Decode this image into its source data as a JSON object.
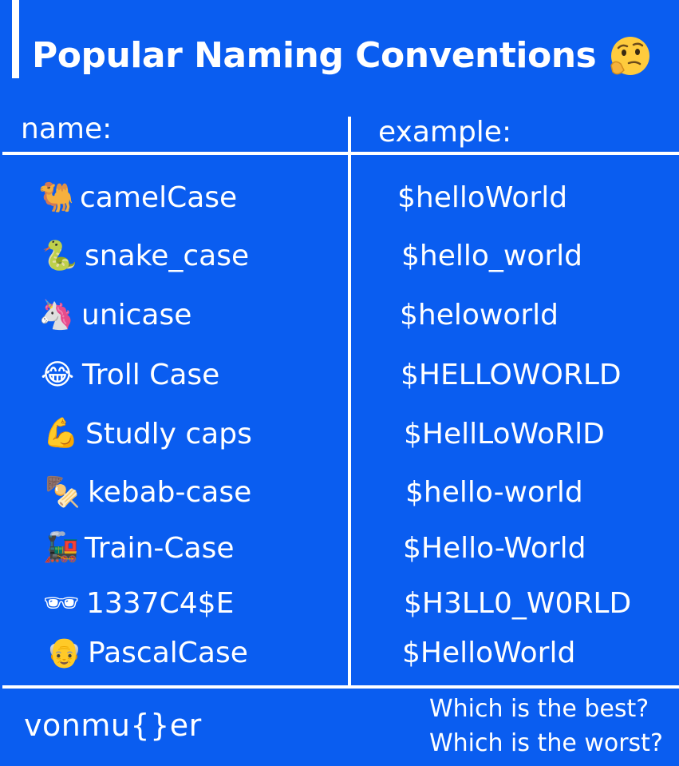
{
  "header": {
    "title": "Popular Naming Conventions",
    "title_emoji": "thinking-face-icon"
  },
  "columns": {
    "name_header": "name:",
    "example_header": "example:"
  },
  "rows": [
    {
      "icon": "camel-icon",
      "emoji": "🐫",
      "name": "camelCase",
      "example": "$helloWorld"
    },
    {
      "icon": "snake-icon",
      "emoji": "🐍",
      "name": "snake_case",
      "example": "$hello_world"
    },
    {
      "icon": "unicorn-icon",
      "emoji": "🦄",
      "name": "unicase",
      "example": "$heloworld"
    },
    {
      "icon": "laughing-face-icon",
      "emoji": "😂",
      "name": "Troll Case",
      "example": "$HELLOWORLD"
    },
    {
      "icon": "flexed-biceps-icon",
      "emoji": "💪",
      "name": "Studly caps",
      "example": "$HellLoWoRlD"
    },
    {
      "icon": "kebab-skewer-icon",
      "emoji": "🍢",
      "name": "kebab-case",
      "example": "$hello-world"
    },
    {
      "icon": "locomotive-icon",
      "emoji": "🚂",
      "name": "Train-Case",
      "example": "$Hello-World"
    },
    {
      "icon": "sunglasses-icon",
      "emoji": "🕶",
      "name": "1337C4$E",
      "example": "$H3LL0_W0RLD"
    },
    {
      "icon": "old-man-icon",
      "emoji": "👴",
      "name": "PascalCase",
      "example": "$HelloWorld"
    }
  ],
  "footer": {
    "brand": "vonmu{}er",
    "question_best": "Which is the best?",
    "question_worst": "Which is the worst?"
  },
  "colors": {
    "background": "#0a5df0",
    "text": "#ffffff"
  }
}
